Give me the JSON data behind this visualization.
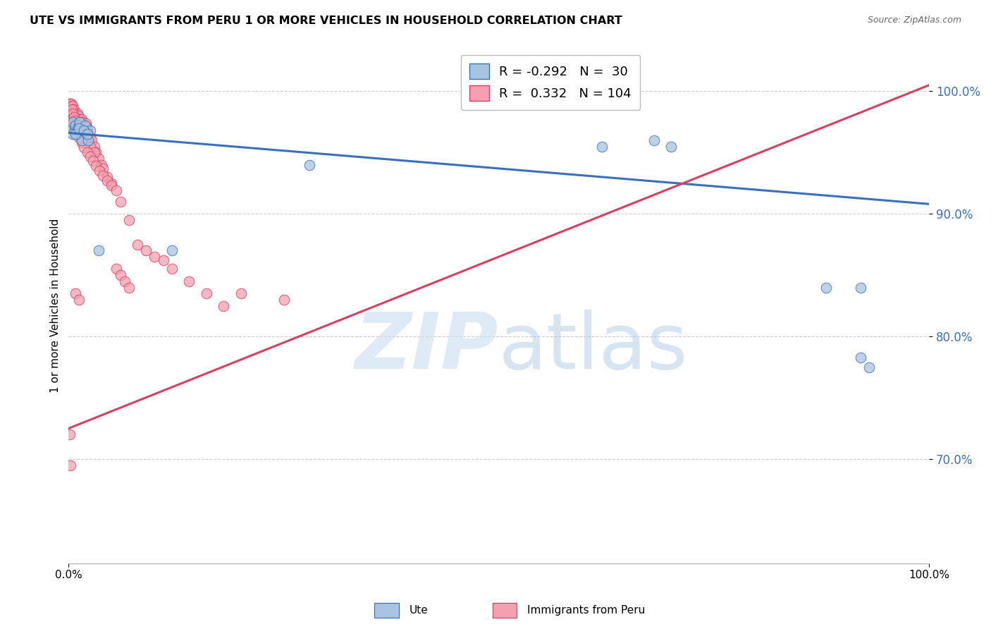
{
  "title": "UTE VS IMMIGRANTS FROM PERU 1 OR MORE VEHICLES IN HOUSEHOLD CORRELATION CHART",
  "source": "Source: ZipAtlas.com",
  "ylabel": "1 or more Vehicles in Household",
  "ytick_labels": [
    "70.0%",
    "80.0%",
    "90.0%",
    "100.0%"
  ],
  "ytick_values": [
    0.7,
    0.8,
    0.9,
    1.0
  ],
  "xlim": [
    0.0,
    1.0
  ],
  "ylim": [
    0.615,
    1.035
  ],
  "legend_blue_R": "-0.292",
  "legend_blue_N": "30",
  "legend_pink_R": "0.332",
  "legend_pink_N": "104",
  "blue_color": "#a8c4e0",
  "pink_color": "#f4a0b0",
  "blue_line_color": "#3a6fba",
  "pink_line_color": "#d44060",
  "blue_scatter_x": [
    0.003,
    0.005,
    0.007,
    0.008,
    0.009,
    0.01,
    0.011,
    0.012,
    0.013,
    0.015,
    0.017,
    0.019,
    0.021,
    0.023,
    0.025,
    0.005,
    0.008,
    0.012,
    0.018,
    0.022,
    0.035,
    0.12,
    0.28,
    0.62,
    0.68,
    0.7,
    0.88,
    0.92,
    0.92,
    0.93
  ],
  "blue_scatter_y": [
    0.97,
    0.975,
    0.968,
    0.972,
    0.965,
    0.97,
    0.968,
    0.972,
    0.975,
    0.96,
    0.968,
    0.972,
    0.965,
    0.96,
    0.968,
    0.965,
    0.965,
    0.97,
    0.968,
    0.965,
    0.87,
    0.87,
    0.94,
    0.955,
    0.96,
    0.955,
    0.84,
    0.84,
    0.783,
    0.775
  ],
  "pink_scatter_x": [
    0.001,
    0.001,
    0.001,
    0.002,
    0.002,
    0.002,
    0.003,
    0.003,
    0.003,
    0.004,
    0.004,
    0.004,
    0.005,
    0.005,
    0.005,
    0.006,
    0.006,
    0.006,
    0.007,
    0.007,
    0.008,
    0.008,
    0.009,
    0.009,
    0.01,
    0.01,
    0.01,
    0.011,
    0.011,
    0.012,
    0.012,
    0.013,
    0.013,
    0.014,
    0.014,
    0.015,
    0.015,
    0.016,
    0.016,
    0.017,
    0.018,
    0.019,
    0.02,
    0.02,
    0.021,
    0.022,
    0.023,
    0.025,
    0.027,
    0.03,
    0.032,
    0.035,
    0.038,
    0.04,
    0.045,
    0.05,
    0.06,
    0.07,
    0.08,
    0.09,
    0.1,
    0.11,
    0.12,
    0.14,
    0.16,
    0.18,
    0.02,
    0.025,
    0.03,
    0.01,
    0.012,
    0.015,
    0.018,
    0.022,
    0.025,
    0.028,
    0.032,
    0.036,
    0.04,
    0.045,
    0.05,
    0.055,
    0.004,
    0.004,
    0.004,
    0.005,
    0.005,
    0.006,
    0.006,
    0.007,
    0.007,
    0.008,
    0.008,
    0.009,
    0.001,
    0.002,
    0.055,
    0.06,
    0.065,
    0.07,
    0.2,
    0.25,
    0.008,
    0.012
  ],
  "pink_scatter_y": [
    0.99,
    0.985,
    0.978,
    0.99,
    0.985,
    0.975,
    0.99,
    0.983,
    0.975,
    0.988,
    0.982,
    0.975,
    0.988,
    0.981,
    0.973,
    0.985,
    0.979,
    0.972,
    0.982,
    0.976,
    0.98,
    0.974,
    0.978,
    0.972,
    0.982,
    0.976,
    0.97,
    0.98,
    0.974,
    0.977,
    0.971,
    0.977,
    0.971,
    0.975,
    0.969,
    0.977,
    0.971,
    0.975,
    0.968,
    0.972,
    0.969,
    0.966,
    0.974,
    0.967,
    0.971,
    0.968,
    0.965,
    0.963,
    0.96,
    0.955,
    0.95,
    0.945,
    0.94,
    0.937,
    0.93,
    0.925,
    0.91,
    0.895,
    0.875,
    0.87,
    0.865,
    0.862,
    0.855,
    0.845,
    0.835,
    0.825,
    0.96,
    0.955,
    0.95,
    0.965,
    0.962,
    0.958,
    0.954,
    0.95,
    0.947,
    0.943,
    0.939,
    0.935,
    0.931,
    0.927,
    0.923,
    0.919,
    0.985,
    0.98,
    0.975,
    0.982,
    0.978,
    0.979,
    0.975,
    0.976,
    0.972,
    0.973,
    0.969,
    0.97,
    0.72,
    0.695,
    0.855,
    0.85,
    0.845,
    0.84,
    0.835,
    0.83,
    0.835,
    0.83
  ]
}
